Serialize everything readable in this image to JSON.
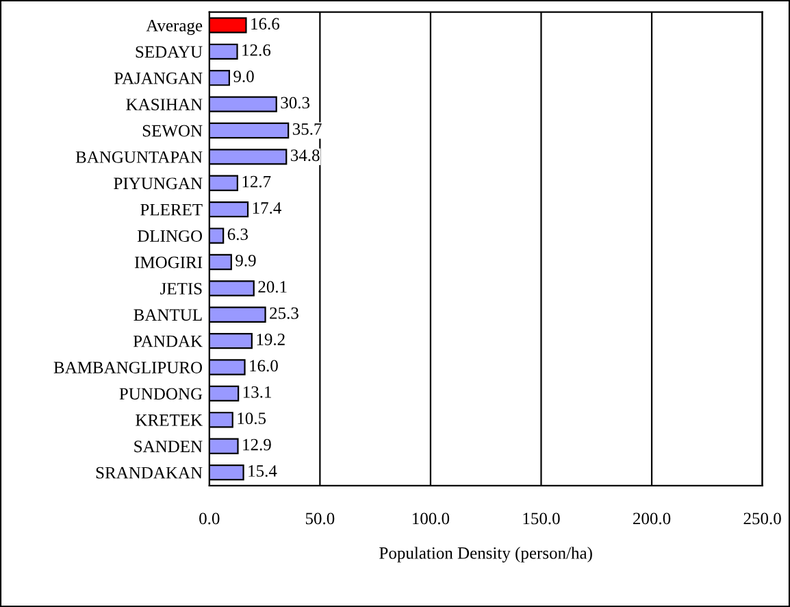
{
  "chart_data": {
    "type": "bar",
    "orientation": "horizontal",
    "xlabel": "Population Density (person/ha)",
    "categories": [
      "Average",
      "SEDAYU",
      "PAJANGAN",
      "KASIHAN",
      "SEWON",
      "BANGUNTAPAN",
      "PIYUNGAN",
      "PLERET",
      "DLINGO",
      "IMOGIRI",
      "JETIS",
      "BANTUL",
      "PANDAK",
      "BAMBANGLIPURO",
      "PUNDONG",
      "KRETEK",
      "SANDEN",
      "SRANDAKAN"
    ],
    "values": [
      16.6,
      12.6,
      9.0,
      30.3,
      35.7,
      34.8,
      12.7,
      17.4,
      6.3,
      9.9,
      20.1,
      25.3,
      19.2,
      16.0,
      13.1,
      10.5,
      12.9,
      15.4
    ],
    "value_labels": [
      "16.6",
      "12.6",
      "9.0",
      "30.3",
      "35.7",
      "34.8",
      "12.7",
      "17.4",
      "6.3",
      "9.9",
      "20.1",
      "25.3",
      "19.2",
      "16.0",
      "13.1",
      "10.5",
      "12.9",
      "15.4"
    ],
    "colors": [
      "#ff0000",
      "#9999ff",
      "#9999ff",
      "#9999ff",
      "#9999ff",
      "#9999ff",
      "#9999ff",
      "#9999ff",
      "#9999ff",
      "#9999ff",
      "#9999ff",
      "#9999ff",
      "#9999ff",
      "#9999ff",
      "#9999ff",
      "#9999ff",
      "#9999ff",
      "#9999ff"
    ],
    "xlim": [
      0,
      250
    ],
    "xticks": [
      {
        "value": 0,
        "label": "0.0"
      },
      {
        "value": 50,
        "label": "50.0"
      },
      {
        "value": 100,
        "label": "100.0"
      },
      {
        "value": 150,
        "label": "150.0"
      },
      {
        "value": 200,
        "label": "200.0"
      },
      {
        "value": 250,
        "label": "250.0"
      }
    ],
    "grid": "x",
    "legend": false
  }
}
